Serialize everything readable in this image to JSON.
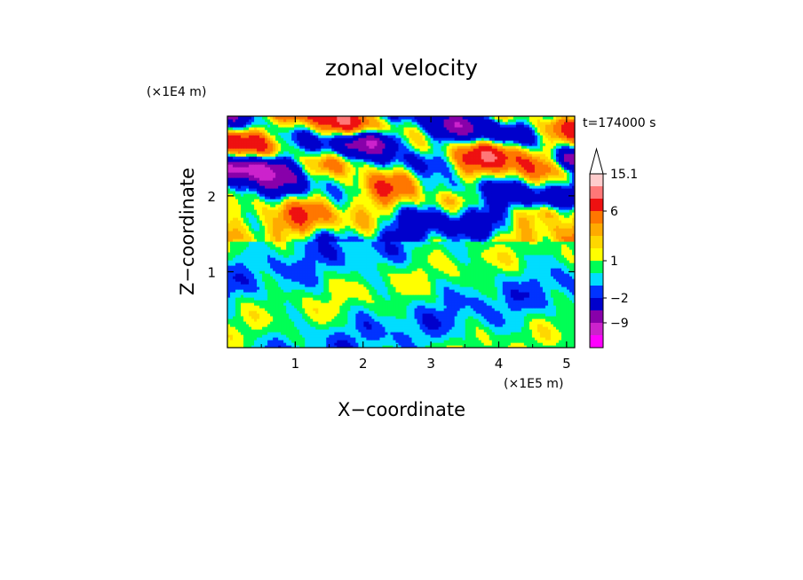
{
  "chart_data": {
    "type": "heatmap",
    "title": "zonal velocity",
    "xlabel": "X−coordinate",
    "ylabel": "Z−coordinate",
    "x_scale_label": "(×1E5 m)",
    "y_scale_label": "(×1E4 m)",
    "time_label": "t=174000 s",
    "xlim": [
      0,
      5.12
    ],
    "ylim": [
      0,
      3.05
    ],
    "x_ticks": [
      1,
      2,
      3,
      4,
      5
    ],
    "y_ticks": [
      1,
      2
    ],
    "grid": false,
    "colorbar": {
      "levels": [
        -15,
        -12,
        -9,
        -6,
        -2,
        -1,
        0,
        1,
        2,
        3,
        4,
        6,
        9,
        12,
        15.1
      ],
      "colors": [
        "#ff00ff",
        "#cc22cc",
        "#8800aa",
        "#0000cc",
        "#0033ff",
        "#00ddff",
        "#00ff55",
        "#ffff00",
        "#ffd700",
        "#ffaa00",
        "#ff7700",
        "#ee1111",
        "#ff7777",
        "#ffcccc"
      ],
      "extend_max": true,
      "tick_labels": [
        {
          "value": 15.1,
          "label": "15.1"
        },
        {
          "value": 6,
          "label": "6"
        },
        {
          "value": 1,
          "label": "1"
        },
        {
          "value": -2,
          "label": "−2"
        },
        {
          "value": -9,
          "label": "−9"
        }
      ]
    }
  }
}
